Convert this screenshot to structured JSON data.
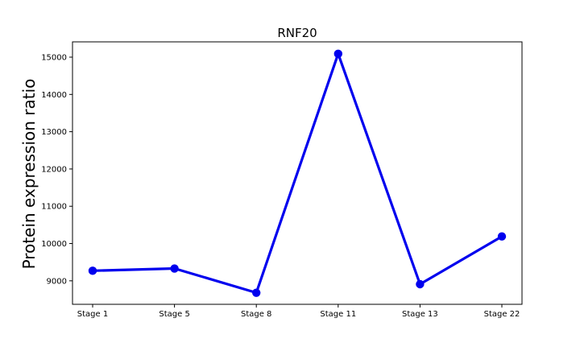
{
  "chart_data": {
    "type": "line",
    "title": "RNF20",
    "xlabel": "",
    "ylabel": "Protein expression ratio",
    "categories": [
      "Stage 1",
      "Stage 5",
      "Stage 8",
      "Stage 11",
      "Stage 13",
      "Stage 22"
    ],
    "series": [
      {
        "values": [
          9270,
          9330,
          8680,
          15090,
          8910,
          10190
        ]
      }
    ],
    "ylim": [
      8370,
      15410
    ],
    "yticks": [
      9000,
      10000,
      11000,
      12000,
      13000,
      14000,
      15000
    ],
    "grid": false,
    "colors": {
      "line": "#0000ee",
      "axis": "#000000",
      "background": "#ffffff"
    }
  }
}
